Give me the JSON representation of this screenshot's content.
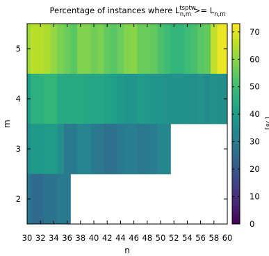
{
  "chart_data": {
    "type": "heatmap",
    "title": {
      "main": "Percentage of instances where L",
      "sup": "tsptw",
      "sub": "n,m",
      "rest": " >= L",
      "sub2": "n,m"
    },
    "xlabel": "n",
    "ylabel": "m",
    "colorbar_label": "[%]",
    "x": [
      30,
      31,
      32,
      33,
      34,
      35,
      36,
      37,
      38,
      39,
      40,
      41,
      42,
      43,
      44,
      45,
      46,
      47,
      48,
      49,
      50,
      51,
      52,
      53,
      54,
      55,
      56,
      57,
      58,
      59,
      60
    ],
    "x_ticks": [
      30,
      32,
      34,
      36,
      38,
      40,
      42,
      44,
      46,
      48,
      50,
      52,
      54,
      56,
      58,
      60
    ],
    "y": [
      2,
      3,
      4,
      5
    ],
    "y_ticks": [
      2,
      3,
      4,
      5
    ],
    "xlim": [
      30,
      60
    ],
    "ylim": [
      1.5,
      5.5
    ],
    "color_range": [
      0,
      73
    ],
    "color_ticks": [
      0,
      10,
      20,
      30,
      40,
      50,
      60,
      70
    ],
    "colormap": "viridis",
    "missing_color": "#ffffff",
    "rows": [
      {
        "m": 5,
        "values": [
          62,
          65,
          65,
          64,
          61,
          58,
          56,
          54,
          59,
          59,
          57,
          58,
          55,
          54,
          56,
          59,
          60,
          56,
          56,
          55,
          52,
          50,
          48,
          48,
          50,
          51,
          54,
          55,
          66,
          71,
          71
        ]
      },
      {
        "m": 4,
        "values": [
          40,
          46,
          46,
          48,
          48,
          44,
          44,
          44,
          44,
          43,
          43,
          43,
          42,
          41,
          39,
          38,
          38,
          40,
          39,
          38,
          38,
          37,
          37,
          37,
          37,
          36,
          37,
          35,
          37,
          36,
          36
        ]
      },
      {
        "m": 3,
        "values": [
          36,
          39,
          39,
          40,
          40,
          36,
          30,
          30,
          33,
          33,
          30,
          29,
          27,
          27,
          30,
          31,
          31,
          29,
          30,
          31,
          34,
          34,
          null,
          null,
          null,
          null,
          null,
          null,
          null,
          null,
          null
        ]
      },
      {
        "m": 2,
        "values": [
          30,
          25,
          25,
          28,
          28,
          30,
          30,
          null,
          null,
          null,
          null,
          null,
          null,
          null,
          null,
          null,
          null,
          null,
          null,
          null,
          null,
          null,
          null,
          null,
          null,
          null,
          null,
          null,
          null,
          null,
          null
        ]
      }
    ]
  }
}
